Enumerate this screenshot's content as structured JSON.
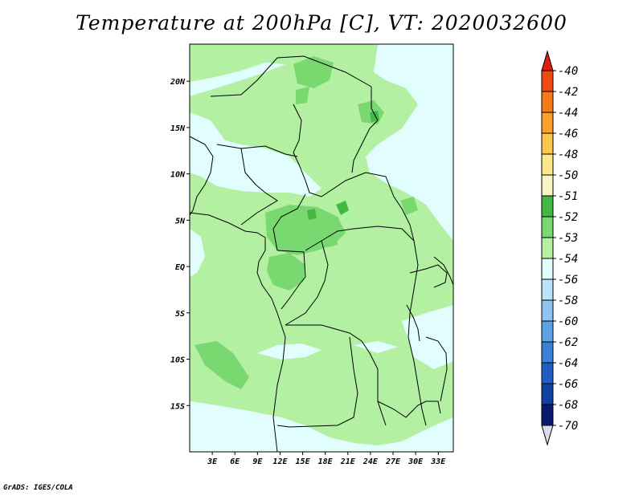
{
  "title": "Temperature at 200hPa [C], VT: 2020032600",
  "credit": "GrADS: IGES/COLA",
  "map": {
    "lat_range": [
      -20,
      24
    ],
    "lon_range": [
      0,
      35
    ],
    "lat_ticks": [
      {
        "value": 20,
        "label": "20N"
      },
      {
        "value": 15,
        "label": "15N"
      },
      {
        "value": 10,
        "label": "10N"
      },
      {
        "value": 5,
        "label": "5N"
      },
      {
        "value": 0,
        "label": "EQ"
      },
      {
        "value": -5,
        "label": "5S"
      },
      {
        "value": -10,
        "label": "10S"
      },
      {
        "value": -15,
        "label": "15S"
      }
    ],
    "lon_ticks": [
      {
        "value": 3,
        "label": "3E"
      },
      {
        "value": 6,
        "label": "6E"
      },
      {
        "value": 9,
        "label": "9E"
      },
      {
        "value": 12,
        "label": "12E"
      },
      {
        "value": 15,
        "label": "15E"
      },
      {
        "value": 18,
        "label": "18E"
      },
      {
        "value": 21,
        "label": "21E"
      },
      {
        "value": 24,
        "label": "24E"
      },
      {
        "value": 27,
        "label": "27E"
      },
      {
        "value": 30,
        "label": "30E"
      },
      {
        "value": 33,
        "label": "33E"
      }
    ]
  },
  "colorbar": {
    "labels": [
      "-40",
      "-42",
      "-44",
      "-46",
      "-48",
      "-50",
      "-51",
      "-52",
      "-53",
      "-54",
      "-56",
      "-58",
      "-60",
      "-62",
      "-64",
      "-66",
      "-68",
      "-70"
    ],
    "colors": [
      "#e11d0c",
      "#f04a12",
      "#f47b18",
      "#f8a02a",
      "#fbc74e",
      "#fde78a",
      "#f7f5c2",
      "#44b844",
      "#7ad870",
      "#b3f0a2",
      "#e2fdfd",
      "#b8e3f8",
      "#8fc4f0",
      "#5ea2e6",
      "#3a82d8",
      "#1f5fc4",
      "#1240a0",
      "#0a1a6e",
      "#dcdcf0"
    ]
  }
}
